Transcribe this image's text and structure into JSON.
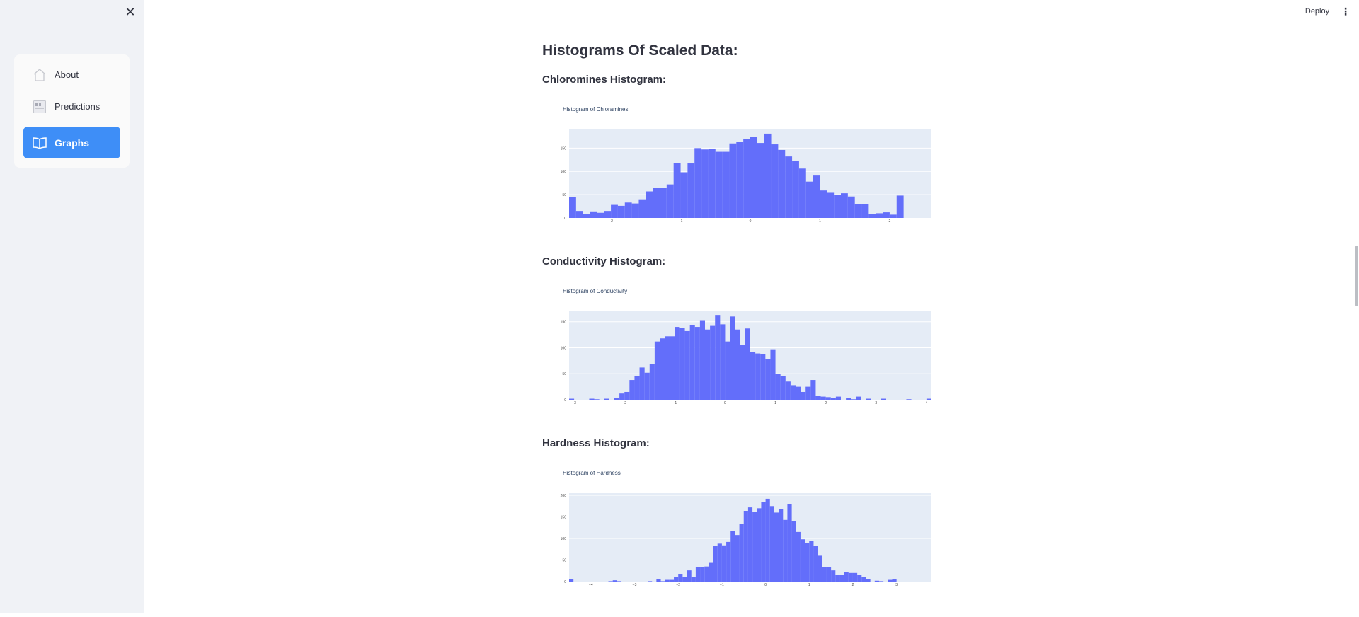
{
  "sidebar": {
    "close_symbol": "✕",
    "items": [
      {
        "label": "About",
        "icon": "house-icon",
        "active": false
      },
      {
        "label": "Predictions",
        "icon": "calendar-icon",
        "active": false
      },
      {
        "label": "Graphs",
        "icon": "book-icon",
        "active": true
      }
    ]
  },
  "topbar": {
    "deploy_label": "Deploy",
    "menu_symbol": "⋮"
  },
  "main": {
    "heading": "Histograms Of Scaled Data:"
  },
  "colors": {
    "bar": "#636efa",
    "plot_bg": "#e5ecf6",
    "accent": "#3e8ef7",
    "sidebar_bg": "#f0f2f6"
  },
  "chart_data": [
    {
      "type": "bar",
      "section_heading": "Chloromines Histogram:",
      "title": "Histogram of Chloramines",
      "xlim": [
        -2.6,
        2.6
      ],
      "ylim": [
        0,
        190
      ],
      "xticks": [
        -2,
        -1,
        0,
        1,
        2
      ],
      "xtick_labels": [
        "−2",
        "−1",
        "0",
        "1",
        "2"
      ],
      "yticks": [
        0,
        50,
        100,
        150
      ],
      "bar_width": 0.1,
      "x": [
        -2.55,
        -2.45,
        -2.35,
        -2.25,
        -2.15,
        -2.05,
        -1.95,
        -1.85,
        -1.75,
        -1.65,
        -1.55,
        -1.45,
        -1.35,
        -1.25,
        -1.15,
        -1.05,
        -0.95,
        -0.85,
        -0.75,
        -0.65,
        -0.55,
        -0.45,
        -0.35,
        -0.25,
        -0.15,
        -0.05,
        0.05,
        0.15,
        0.25,
        0.35,
        0.45,
        0.55,
        0.65,
        0.75,
        0.85,
        0.95,
        1.05,
        1.15,
        1.25,
        1.35,
        1.45,
        1.55,
        1.65,
        1.75,
        1.85,
        1.95,
        2.05,
        2.15,
        2.25,
        2.35,
        2.45,
        2.55
      ],
      "values": [
        45,
        15,
        8,
        14,
        11,
        15,
        28,
        26,
        33,
        31,
        40,
        57,
        65,
        65,
        72,
        118,
        98,
        117,
        150,
        147,
        149,
        142,
        142,
        160,
        163,
        169,
        174,
        161,
        181,
        158,
        146,
        132,
        122,
        106,
        78,
        91,
        59,
        54,
        49,
        53,
        46,
        30,
        29,
        9,
        10,
        12,
        7,
        48,
        0,
        0,
        0,
        0
      ]
    },
    {
      "type": "bar",
      "section_heading": "Conductivity Histogram:",
      "title": "Histogram of Conductivity",
      "xlim": [
        -3.1,
        4.1
      ],
      "ylim": [
        0,
        170
      ],
      "xticks": [
        -3,
        -2,
        -1,
        0,
        1,
        2,
        3,
        4
      ],
      "xtick_labels": [
        "−3",
        "−2",
        "−1",
        "0",
        "1",
        "2",
        "3",
        "4"
      ],
      "yticks": [
        0,
        50,
        100,
        150
      ],
      "bar_width": 0.1,
      "x": [
        -3.05,
        -2.95,
        -2.85,
        -2.75,
        -2.65,
        -2.55,
        -2.45,
        -2.35,
        -2.25,
        -2.15,
        -2.05,
        -1.95,
        -1.85,
        -1.75,
        -1.65,
        -1.55,
        -1.45,
        -1.35,
        -1.25,
        -1.15,
        -1.05,
        -0.95,
        -0.85,
        -0.75,
        -0.65,
        -0.55,
        -0.45,
        -0.35,
        -0.25,
        -0.15,
        -0.05,
        0.05,
        0.15,
        0.25,
        0.35,
        0.45,
        0.55,
        0.65,
        0.75,
        0.85,
        0.95,
        1.05,
        1.15,
        1.25,
        1.35,
        1.45,
        1.55,
        1.65,
        1.75,
        1.85,
        1.95,
        2.05,
        2.15,
        2.25,
        2.35,
        2.45,
        2.55,
        2.65,
        2.75,
        2.85,
        2.95,
        3.05,
        3.15,
        3.25,
        3.35,
        3.45,
        3.55,
        3.65,
        3.75,
        3.85,
        3.95,
        4.05
      ],
      "values": [
        2,
        0,
        0,
        0,
        2,
        1,
        0,
        2,
        0,
        4,
        12,
        15,
        38,
        45,
        62,
        52,
        69,
        112,
        118,
        122,
        122,
        140,
        138,
        132,
        144,
        140,
        153,
        135,
        142,
        163,
        145,
        112,
        160,
        135,
        105,
        137,
        92,
        89,
        88,
        78,
        97,
        50,
        45,
        35,
        28,
        25,
        15,
        25,
        38,
        8,
        6,
        5,
        3,
        6,
        0,
        3,
        1,
        6,
        0,
        2,
        0,
        0,
        2,
        0,
        0,
        0,
        0,
        1,
        0,
        0,
        0,
        2
      ]
    },
    {
      "type": "bar",
      "section_heading": "Hardness Histogram:",
      "title": "Histogram of Hardness",
      "xlim": [
        -4.5,
        3.8
      ],
      "ylim": [
        0,
        205
      ],
      "xticks": [
        -4,
        -3,
        -2,
        -1,
        0,
        1,
        2,
        3
      ],
      "xtick_labels": [
        "−4",
        "−3",
        "−2",
        "−1",
        "0",
        "1",
        "2",
        "3"
      ],
      "yticks": [
        0,
        50,
        100,
        150,
        200
      ],
      "bar_width": 0.1,
      "x": [
        -4.45,
        -4.35,
        -4.25,
        -4.15,
        -4.05,
        -3.95,
        -3.85,
        -3.75,
        -3.65,
        -3.55,
        -3.45,
        -3.35,
        -3.25,
        -3.15,
        -3.05,
        -2.95,
        -2.85,
        -2.75,
        -2.65,
        -2.55,
        -2.45,
        -2.35,
        -2.25,
        -2.15,
        -2.05,
        -1.95,
        -1.85,
        -1.75,
        -1.65,
        -1.55,
        -1.45,
        -1.35,
        -1.25,
        -1.15,
        -1.05,
        -0.95,
        -0.85,
        -0.75,
        -0.65,
        -0.55,
        -0.45,
        -0.35,
        -0.25,
        -0.15,
        -0.05,
        0.05,
        0.15,
        0.25,
        0.35,
        0.45,
        0.55,
        0.65,
        0.75,
        0.85,
        0.95,
        1.05,
        1.15,
        1.25,
        1.35,
        1.45,
        1.55,
        1.65,
        1.75,
        1.85,
        1.95,
        2.05,
        2.15,
        2.25,
        2.35,
        2.45,
        2.55,
        2.65,
        2.75,
        2.85,
        2.95,
        3.05,
        3.15,
        3.25,
        3.35,
        3.45,
        3.55,
        3.65,
        3.75
      ],
      "values": [
        6,
        0,
        0,
        0,
        0,
        0,
        0,
        0,
        0,
        1,
        3,
        1,
        0,
        0,
        0,
        0,
        0,
        0,
        1,
        0,
        6,
        1,
        4,
        4,
        10,
        18,
        10,
        26,
        10,
        34,
        34,
        35,
        45,
        82,
        88,
        84,
        92,
        117,
        108,
        133,
        164,
        172,
        161,
        170,
        184,
        192,
        175,
        160,
        168,
        143,
        180,
        140,
        115,
        98,
        90,
        95,
        82,
        60,
        34,
        34,
        26,
        16,
        16,
        22,
        20,
        20,
        16,
        10,
        6,
        0,
        2,
        1,
        0,
        4,
        6,
        0,
        0,
        0,
        0,
        0,
        0,
        0,
        0
      ]
    }
  ]
}
